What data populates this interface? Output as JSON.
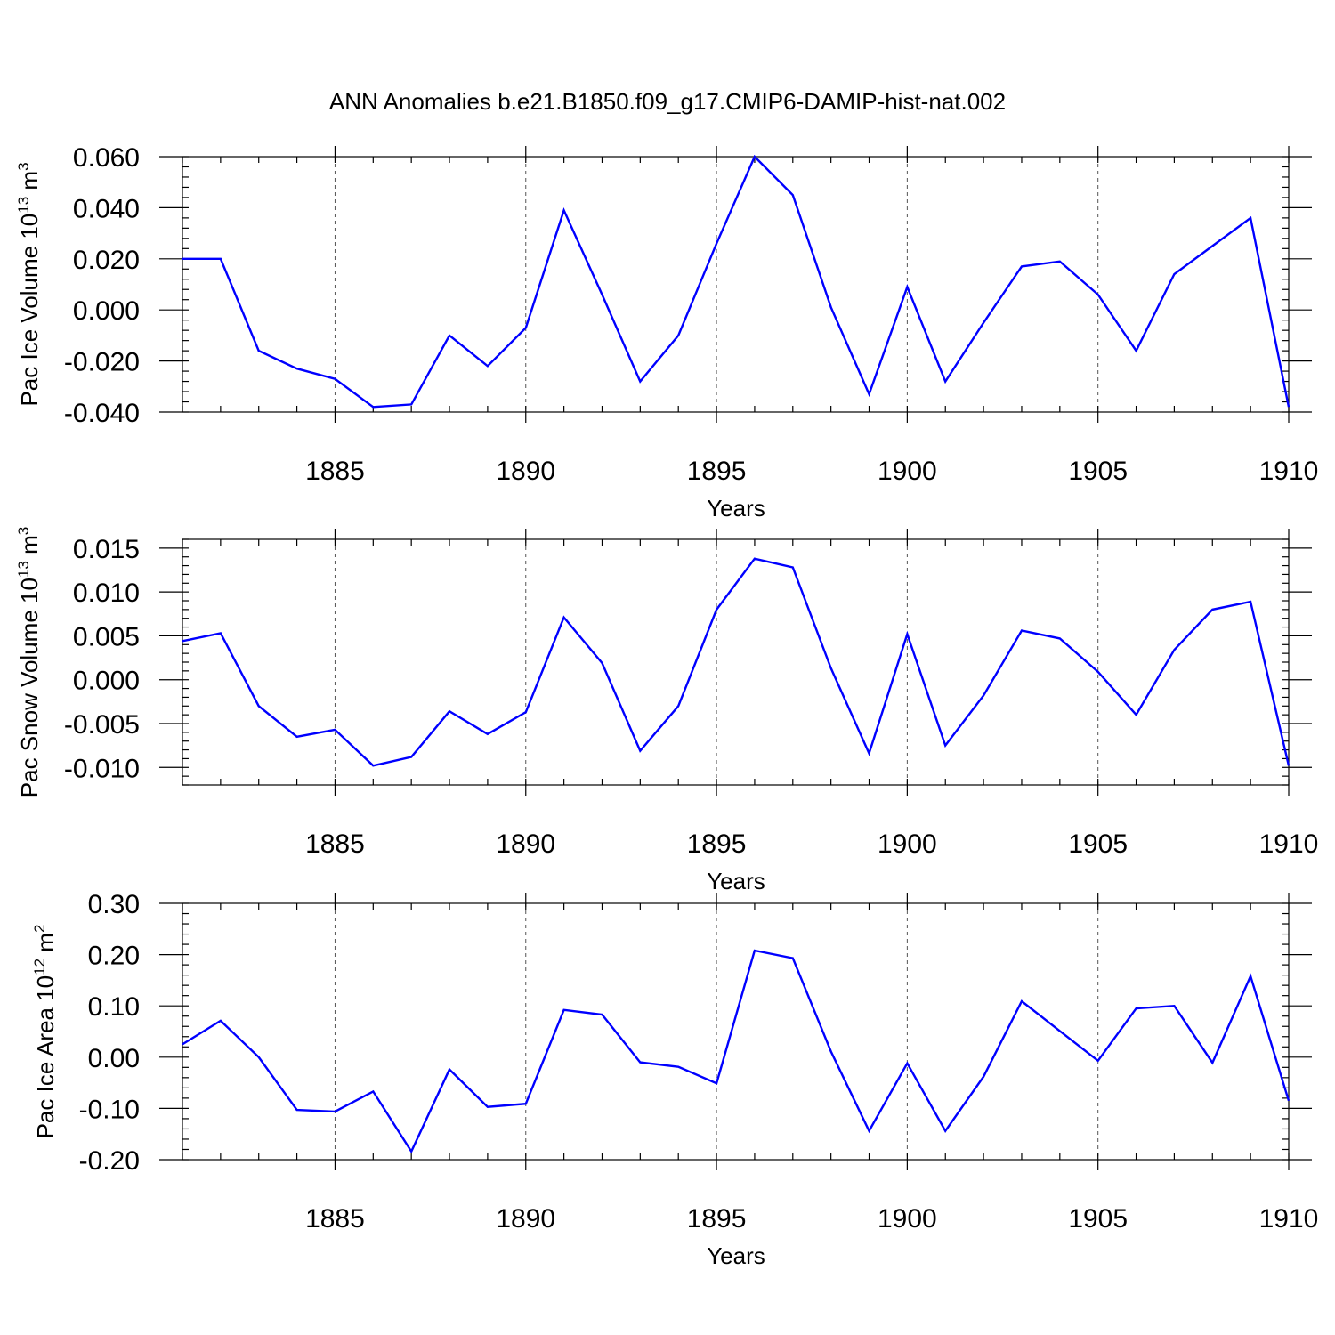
{
  "figure_title": "ANN Anomalies b.e21.B1850.f09_g17.CMIP6-DAMIP-hist-nat.002",
  "line_color": "#0000ff",
  "chart_data": [
    {
      "type": "line",
      "ylabel_main": "Pac Ice Volume 10",
      "ylabel_exp": "13",
      "ylabel_unit": " m",
      "ylabel_unit_exp": "3",
      "xlabel": "Years",
      "xlim": [
        1881,
        1910
      ],
      "ylim": [
        -0.04,
        0.06
      ],
      "yticks": [
        -0.04,
        -0.02,
        0.0,
        0.02,
        0.04,
        0.06
      ],
      "ytick_labels": [
        "-0.040",
        "-0.020",
        "0.000",
        "0.020",
        "0.040",
        "0.060"
      ],
      "xticks": [
        1885,
        1890,
        1895,
        1900,
        1905,
        1910
      ],
      "xtick_labels": [
        "1885",
        "1890",
        "1895",
        "1900",
        "1905",
        "1910"
      ],
      "x": [
        1881,
        1882,
        1883,
        1884,
        1885,
        1886,
        1887,
        1888,
        1889,
        1890,
        1891,
        1892,
        1893,
        1894,
        1895,
        1896,
        1897,
        1898,
        1899,
        1900,
        1901,
        1902,
        1903,
        1904,
        1905,
        1906,
        1907,
        1908,
        1909,
        1910
      ],
      "values": [
        0.02,
        0.02,
        -0.016,
        -0.023,
        -0.027,
        -0.038,
        -0.037,
        -0.01,
        -0.022,
        -0.007,
        0.039,
        0.006,
        -0.028,
        -0.01,
        0.026,
        0.06,
        0.045,
        0.001,
        -0.033,
        0.009,
        -0.028,
        -0.005,
        0.017,
        0.019,
        0.006,
        -0.016,
        0.014,
        0.025,
        0.036,
        -0.038
      ]
    },
    {
      "type": "line",
      "ylabel_main": "Pac Snow Volume 10",
      "ylabel_exp": "13",
      "ylabel_unit": " m",
      "ylabel_unit_exp": "3",
      "xlabel": "Years",
      "xlim": [
        1881,
        1910
      ],
      "ylim": [
        -0.012,
        0.016
      ],
      "yticks": [
        -0.01,
        -0.005,
        0.0,
        0.005,
        0.01,
        0.015
      ],
      "ytick_labels": [
        "-0.010",
        "-0.005",
        "0.000",
        "0.005",
        "0.010",
        "0.015"
      ],
      "xticks": [
        1885,
        1890,
        1895,
        1900,
        1905,
        1910
      ],
      "xtick_labels": [
        "1885",
        "1890",
        "1895",
        "1900",
        "1905",
        "1910"
      ],
      "x": [
        1881,
        1882,
        1883,
        1884,
        1885,
        1886,
        1887,
        1888,
        1889,
        1890,
        1891,
        1892,
        1893,
        1894,
        1895,
        1896,
        1897,
        1898,
        1899,
        1900,
        1901,
        1902,
        1903,
        1904,
        1905,
        1906,
        1907,
        1908,
        1909,
        1910
      ],
      "values": [
        0.0044,
        0.0053,
        -0.003,
        -0.0065,
        -0.0057,
        -0.0098,
        -0.0088,
        -0.0036,
        -0.0062,
        -0.0037,
        0.0071,
        0.0019,
        -0.0081,
        -0.003,
        0.008,
        0.0138,
        0.0128,
        0.0013,
        -0.0084,
        0.0052,
        -0.0075,
        -0.0018,
        0.0056,
        0.0047,
        0.0009,
        -0.004,
        0.0034,
        0.008,
        0.0089,
        -0.0098
      ]
    },
    {
      "type": "line",
      "ylabel_main": "Pac Ice Area 10",
      "ylabel_exp": "12",
      "ylabel_unit": " m",
      "ylabel_unit_exp": "2",
      "xlabel": "Years",
      "xlim": [
        1881,
        1910
      ],
      "ylim": [
        -0.2,
        0.3
      ],
      "yticks": [
        -0.2,
        -0.1,
        0.0,
        0.1,
        0.2,
        0.3
      ],
      "ytick_labels": [
        "-0.20",
        "-0.10",
        "0.00",
        "0.10",
        "0.20",
        "0.30"
      ],
      "xticks": [
        1885,
        1890,
        1895,
        1900,
        1905,
        1910
      ],
      "xtick_labels": [
        "1885",
        "1890",
        "1895",
        "1900",
        "1905",
        "1910"
      ],
      "x": [
        1881,
        1882,
        1883,
        1884,
        1885,
        1886,
        1887,
        1888,
        1889,
        1890,
        1891,
        1892,
        1893,
        1894,
        1895,
        1896,
        1897,
        1898,
        1899,
        1900,
        1901,
        1902,
        1903,
        1904,
        1905,
        1906,
        1907,
        1908,
        1909,
        1910
      ],
      "values": [
        0.025,
        0.071,
        0.0,
        -0.103,
        -0.106,
        -0.067,
        -0.184,
        -0.024,
        -0.097,
        -0.091,
        0.092,
        0.083,
        -0.01,
        -0.019,
        -0.051,
        0.208,
        0.193,
        0.011,
        -0.144,
        -0.012,
        -0.144,
        -0.038,
        0.109,
        0.051,
        -0.007,
        0.095,
        0.1,
        -0.011,
        0.158,
        -0.085
      ]
    }
  ]
}
